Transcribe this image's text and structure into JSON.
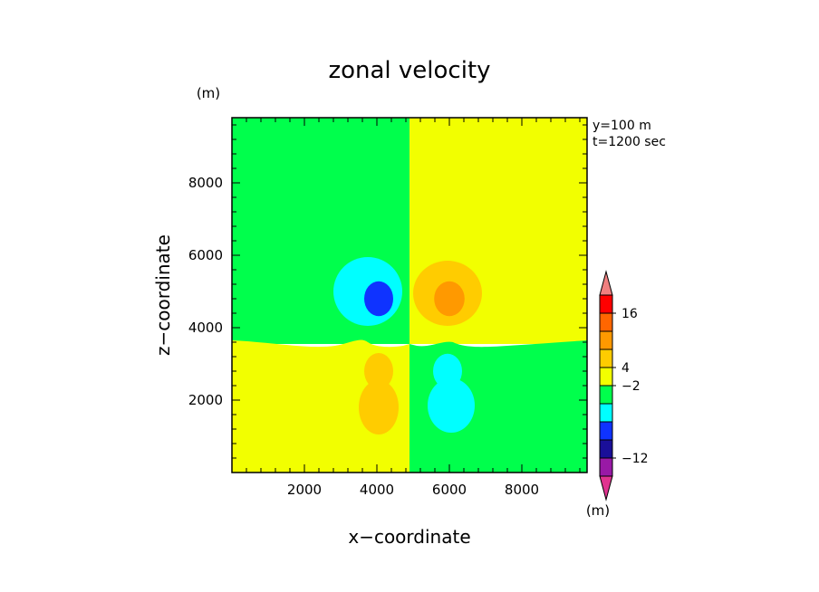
{
  "chart_data": {
    "type": "heatmap",
    "title": "zonal velocity",
    "xlabel": "x−coordinate",
    "ylabel": "z−coordinate",
    "y_unit": "(m)",
    "x_unit": "(m)",
    "annotations": [
      "y=100  m",
      "t=1200 sec"
    ],
    "xlim": [
      0,
      9800
    ],
    "ylim": [
      0,
      9800
    ],
    "x_ticks": [
      2000,
      4000,
      6000,
      8000
    ],
    "y_ticks": [
      2000,
      4000,
      6000,
      8000
    ],
    "x_tick_labels": [
      "2000",
      "4000",
      "6000",
      "8000"
    ],
    "y_tick_labels": [
      "2000",
      "4000",
      "6000",
      "8000"
    ],
    "colorbar": {
      "colors": [
        "#e0338f",
        "#9919a6",
        "#1a0f99",
        "#0f33ff",
        "#00ffff",
        "#00ff4c",
        "#f2ff00",
        "#ffcc00",
        "#ff9900",
        "#ff6600",
        "#ff0000",
        "#f08080"
      ],
      "labels": [
        {
          "boundary": 9,
          "text": "−12"
        },
        {
          "boundary": 5,
          "text": "−2"
        },
        {
          "boundary": 4,
          "text": "4"
        },
        {
          "boundary": 1,
          "text": "16"
        }
      ],
      "extend": "both"
    },
    "field_regions": {
      "upper_left": {
        "color": "#00ff4c",
        "description_level": "0 to -2"
      },
      "upper_right": {
        "color": "#f2ff00",
        "description_level": "0 to 4"
      },
      "lower_left": {
        "color": "#f2ff00"
      },
      "lower_right": {
        "color": "#00ff4c"
      }
    },
    "blobs": [
      {
        "cx": 3750,
        "cz": 5000,
        "rx": 950,
        "rz": 950,
        "color": "#00ffff"
      },
      {
        "cx": 4050,
        "cz": 4800,
        "rx": 400,
        "rz": 480,
        "color": "#0f33ff"
      },
      {
        "cx": 5950,
        "cz": 4950,
        "rx": 950,
        "rz": 900,
        "color": "#ffcc00"
      },
      {
        "cx": 6000,
        "cz": 4800,
        "rx": 420,
        "rz": 480,
        "color": "#ff9900"
      },
      {
        "cx": 4050,
        "cz": 2800,
        "rx": 400,
        "rz": 500,
        "color": "#ffcc00"
      },
      {
        "cx": 4050,
        "cz": 1800,
        "rx": 550,
        "rz": 750,
        "color": "#ffcc00"
      },
      {
        "cx": 5950,
        "cz": 2800,
        "rx": 400,
        "rz": 480,
        "color": "#00ffff"
      },
      {
        "cx": 6050,
        "cz": 1850,
        "rx": 650,
        "rz": 750,
        "color": "#00ffff"
      }
    ]
  }
}
